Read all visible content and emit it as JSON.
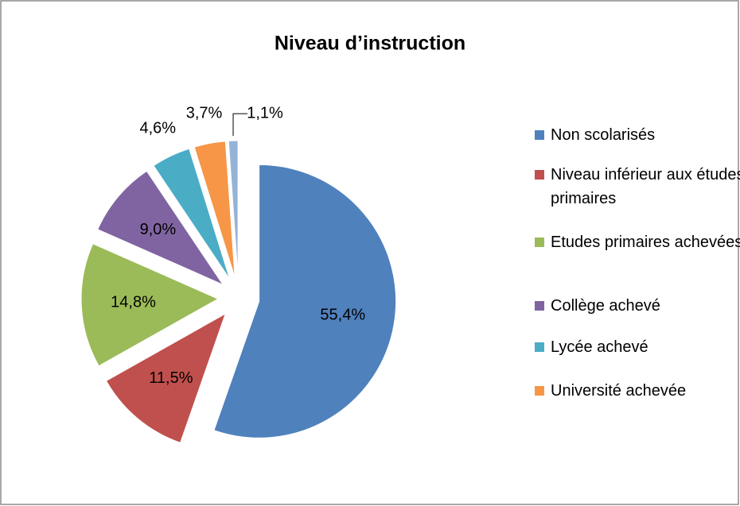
{
  "chart_data": {
    "type": "pie",
    "title": "Niveau d’instruction",
    "categories": [
      "Non scolarisés",
      "Niveau inférieur aux études primaires",
      "Etudes primaires achevées",
      "Collège achevé",
      "Lycée achevé",
      "Université achevée",
      null
    ],
    "values": [
      55.4,
      11.5,
      14.8,
      9.0,
      4.6,
      3.7,
      1.1
    ],
    "value_labels": [
      "55,4%",
      "11,5%",
      "14,8%",
      "9,0%",
      "4,6%",
      "3,7%",
      "1,1%"
    ],
    "colors": [
      "#4f81bd",
      "#c0504d",
      "#9bbb59",
      "#8064a2",
      "#4bacc6",
      "#f79646",
      "#95b3d7"
    ],
    "legend": "right"
  }
}
